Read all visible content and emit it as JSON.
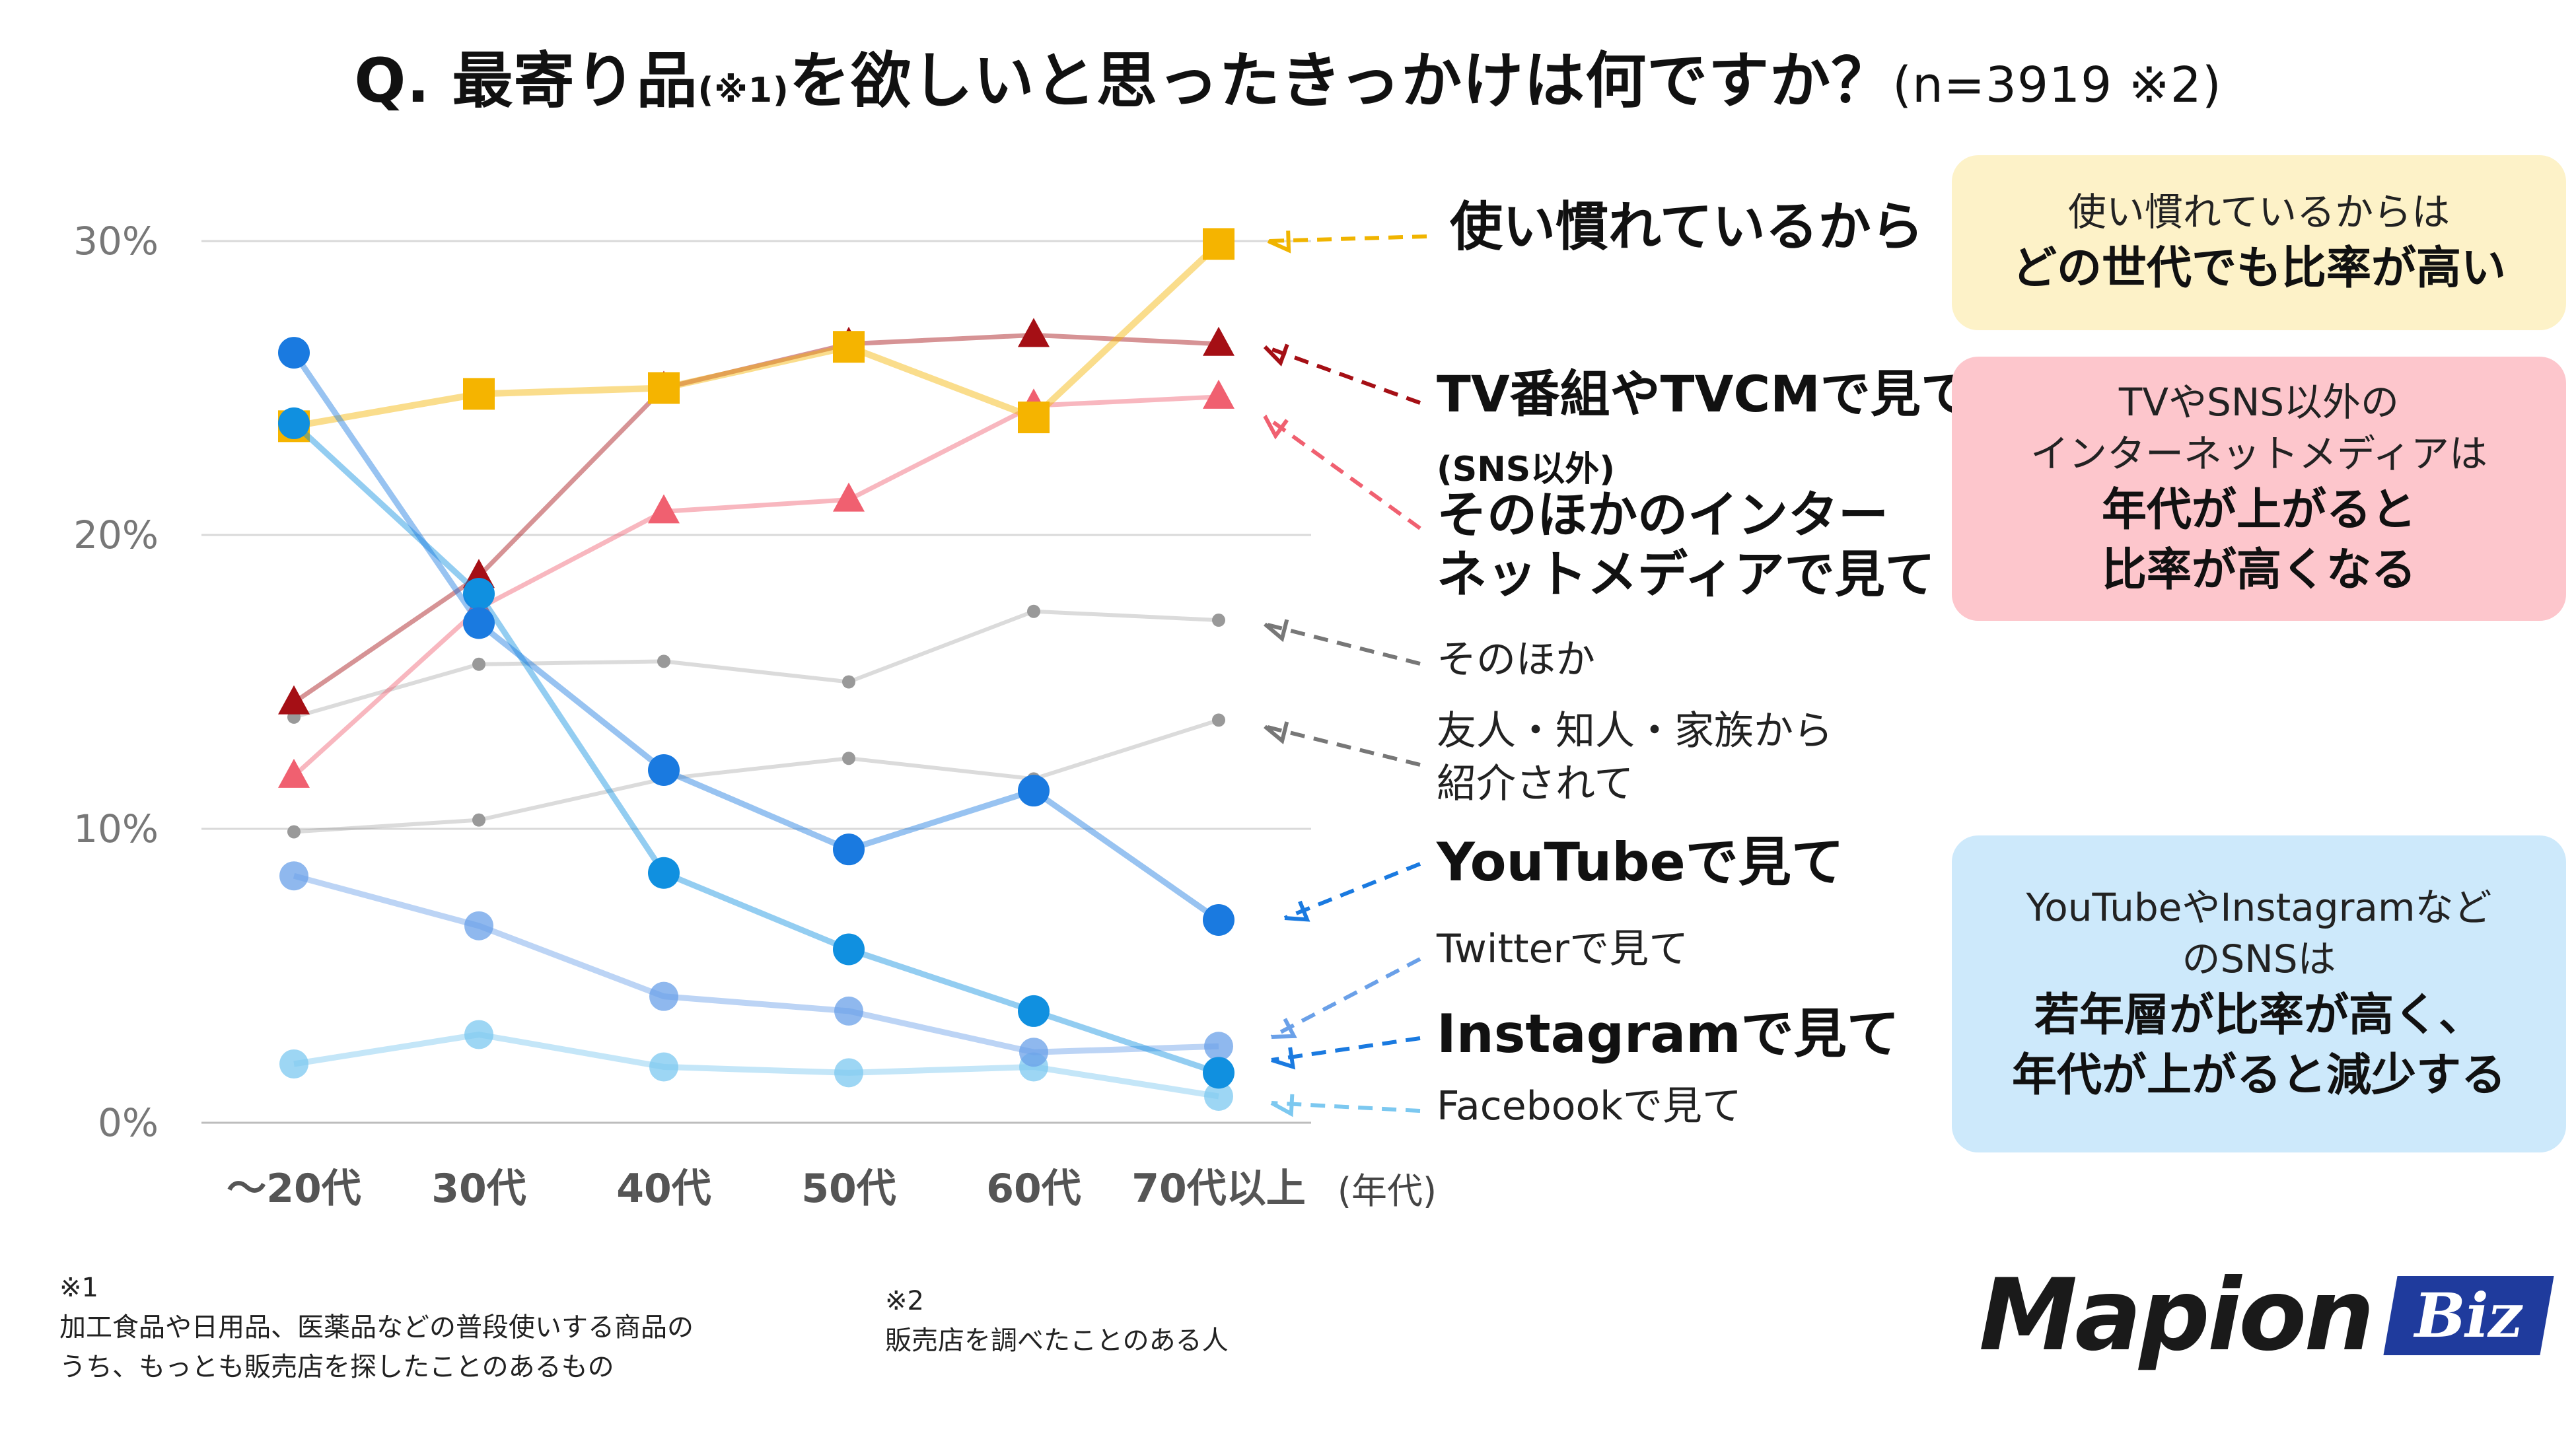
{
  "title": {
    "prefix": "Q.",
    "text_a": "最寄り品",
    "note1": "(※1)",
    "text_b": "を欲しいと思ったきっかけは何ですか？",
    "n": "(n=3919 ※2)"
  },
  "chart_data": {
    "type": "line",
    "title": "最寄り品(※1)を欲しいと思ったきっかけは何ですか？(n=3919 ※2)",
    "categories": [
      "～20代",
      "30代",
      "40代",
      "50代",
      "60代",
      "70代以上"
    ],
    "xlabel": "(年代)",
    "ylabel": "",
    "ylim": [
      0,
      30
    ],
    "y_ticks": [
      "0%",
      "10%",
      "20%",
      "30%"
    ],
    "grid": true,
    "series": [
      {
        "name": "使い慣れているから",
        "values": [
          23.7,
          24.8,
          25.0,
          26.4,
          24.0,
          29.9
        ],
        "color": "#f5b400",
        "marker": "square"
      },
      {
        "name": "TV番組やTVCMで見て(SNS以外)",
        "values": [
          14.3,
          18.6,
          25.0,
          26.5,
          26.8,
          26.5
        ],
        "color": "#a50f15",
        "marker": "triangle"
      },
      {
        "name": "そのほかのインターネットメディアで見て",
        "values": [
          11.8,
          17.5,
          20.8,
          21.2,
          24.4,
          24.7
        ],
        "color": "#f06070",
        "marker": "triangle"
      },
      {
        "name": "そのほか",
        "values": [
          13.8,
          15.6,
          15.7,
          15.0,
          17.4,
          17.1
        ],
        "color": "#999999",
        "marker": "dot"
      },
      {
        "name": "友人・知人・家族から紹介されて",
        "values": [
          9.9,
          10.3,
          11.7,
          12.4,
          11.7,
          13.7
        ],
        "color": "#999999",
        "marker": "dot"
      },
      {
        "name": "YouTubeで見て",
        "values": [
          26.2,
          17.0,
          12.0,
          9.3,
          11.3,
          6.9
        ],
        "color": "#1a7ae0",
        "marker": "circle"
      },
      {
        "name": "Twitterで見て",
        "values": [
          8.4,
          6.7,
          4.3,
          3.8,
          2.4,
          2.6
        ],
        "color": "#6aa0e8",
        "marker": "circle"
      },
      {
        "name": "Instagramで見て",
        "values": [
          23.8,
          18.0,
          8.5,
          5.9,
          3.8,
          1.7
        ],
        "color": "#1090e0",
        "marker": "circle"
      },
      {
        "name": "Facebookで見て",
        "values": [
          2.0,
          3.0,
          1.9,
          1.7,
          1.9,
          0.9
        ],
        "color": "#7cc8f0",
        "marker": "circle"
      }
    ]
  },
  "labels": {
    "tsukai": "使い慣れているから",
    "tv_line1": "TV番組やTVCMで見て",
    "tv_line2": "(SNS以外)",
    "net_line1": "そのほかのインター",
    "net_line2": "ネットメディアで見て",
    "sonota": "そのほか",
    "yujin_line1": "友人・知人・家族から",
    "yujin_line2": "紹介されて",
    "youtube": "YouTubeで見て",
    "twitter": "Twitterで見て",
    "instagram": "Instagramで見て",
    "facebook": "Facebookで見て"
  },
  "callouts": {
    "yellow": {
      "line1": "使い慣れているからは",
      "line2": "どの世代でも比率が高い",
      "color": "#fdf2c8"
    },
    "pink": {
      "line1": "TVやSNS以外の",
      "line2": "インターネットメディアは",
      "line3": "年代が上がると",
      "line4": "比率が高くなる",
      "color": "#fdc6cc"
    },
    "blue": {
      "line1": "YouTubeやInstagramなど",
      "line2": "のSNSは",
      "line3": "若年層が比率が高く、",
      "line4": "年代が上がると減少する",
      "color": "#cde9fb"
    }
  },
  "footnotes": {
    "n1_mark": "※1",
    "n1_line1": "加工食品や日用品、医薬品などの普段使いする商品の",
    "n1_line2": "うち、もっとも販売店を探したことのあるもの",
    "n2_mark": "※2",
    "n2_line1": "販売店を調べたことのある人"
  },
  "logo": {
    "main": "Mapion",
    "sub": "Biz"
  }
}
